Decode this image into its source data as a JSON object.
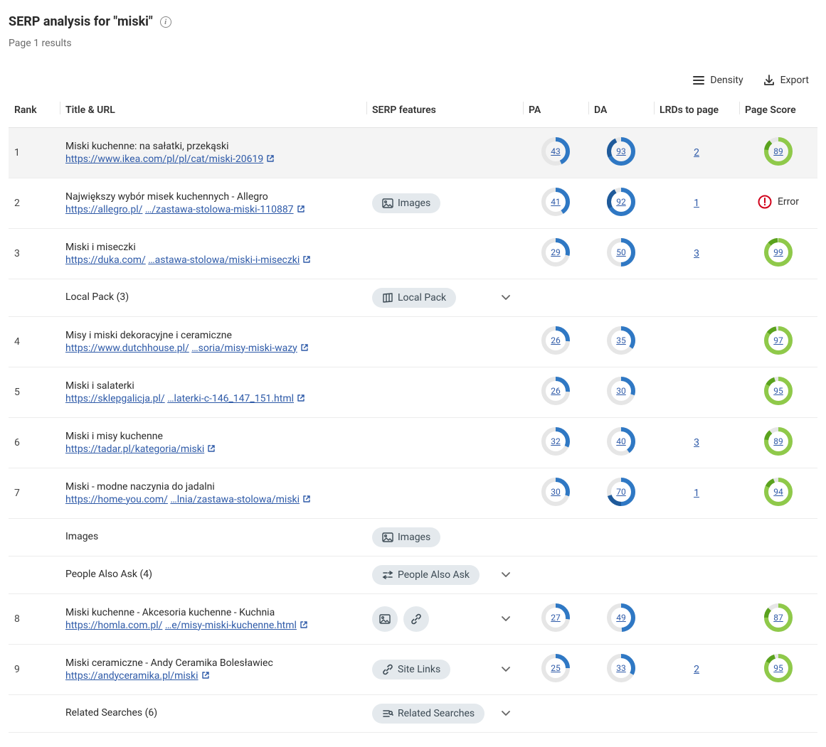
{
  "header": {
    "title_prefix": "SERP analysis for ",
    "title_quoted": "\"miski\"",
    "subtitle": "Page 1 results"
  },
  "toolbar": {
    "density": "Density",
    "export": "Export"
  },
  "columns": {
    "rank": "Rank",
    "title": "Title & URL",
    "features": "SERP features",
    "pa": "PA",
    "da": "DA",
    "lrds": "LRDs to page",
    "score": "Page Score"
  },
  "colors": {
    "donut_track": "#e6e6e6",
    "donut_blue": "#2f78c4",
    "donut_blue_dark": "#1f5a9a",
    "donut_green": "#8fc94a",
    "donut_green_dark": "#5aa21e",
    "pill_bg": "#e4e9ed",
    "link": "#2e5aa8",
    "error": "#d0021b"
  },
  "feature_labels": {
    "images": "Images",
    "local_pack": "Local Pack",
    "people_also_ask": "People Also Ask",
    "site_links": "Site Links",
    "related_searches": "Related Searches",
    "error": "Error"
  },
  "rows": [
    {
      "kind": "result",
      "highlight": true,
      "rank": "1",
      "title": "Miski kuchenne: na sałatki, przekąski",
      "url_display": "https://www.ikea.com/pl/pl/cat/miski-20619",
      "features": [],
      "expandable": false,
      "pa": 43,
      "da": 93,
      "lrds": "2",
      "score": 89
    },
    {
      "kind": "result",
      "rank": "2",
      "title": "Największy wybór misek kuchennych - Allegro",
      "url_prefix": "https://allegro.pl/",
      "url_suffix": "…/zastawa-stolowa-miski-110887",
      "features": [
        "images"
      ],
      "expandable": false,
      "pa": 41,
      "da": 92,
      "lrds": "1",
      "score_error": true
    },
    {
      "kind": "result",
      "rank": "3",
      "title": "Miski i miseczki",
      "url_prefix": "https://duka.com/",
      "url_suffix": "…astawa-stolowa/miski-i-miseczki",
      "features": [],
      "expandable": false,
      "pa": 29,
      "da": 50,
      "lrds": "3",
      "score": 99
    },
    {
      "kind": "feature_row",
      "label": "Local Pack (3)",
      "features": [
        "local_pack"
      ],
      "expandable": true
    },
    {
      "kind": "result",
      "rank": "4",
      "title": "Misy i miski dekoracyjne i ceramiczne",
      "url_prefix": "https://www.dutchhouse.pl/",
      "url_suffix": "…soria/misy-miski-wazy",
      "features": [],
      "expandable": false,
      "pa": 26,
      "da": 35,
      "lrds": "",
      "score": 97
    },
    {
      "kind": "result",
      "rank": "5",
      "title": "Miski i salaterki",
      "url_prefix": "https://sklepgalicja.pl/",
      "url_suffix": "…laterki-c-146_147_151.html",
      "features": [],
      "expandable": false,
      "pa": 26,
      "da": 30,
      "lrds": "",
      "score": 95
    },
    {
      "kind": "result",
      "rank": "6",
      "title": "Miski i misy kuchenne",
      "url_display": "https://tadar.pl/kategoria/miski",
      "features": [],
      "expandable": false,
      "pa": 32,
      "da": 40,
      "lrds": "3",
      "score": 89
    },
    {
      "kind": "result",
      "rank": "7",
      "title": "Miski - modne naczynia do jadalni",
      "url_prefix": "https://home-you.com/",
      "url_suffix": "…lnia/zastawa-stolowa/miski",
      "features": [],
      "expandable": false,
      "pa": 30,
      "da": 70,
      "lrds": "1",
      "score": 94
    },
    {
      "kind": "feature_row",
      "label": "Images",
      "features": [
        "images"
      ],
      "expandable": false
    },
    {
      "kind": "feature_row",
      "label": "People Also Ask (4)",
      "features": [
        "people_also_ask"
      ],
      "expandable": true
    },
    {
      "kind": "result",
      "rank": "8",
      "title": "Miski kuchenne - Akcesoria kuchenne - Kuchnia",
      "url_prefix": "https://homla.com.pl/",
      "url_suffix": "…e/misy-miski-kuchenne.html",
      "features": [
        "images_icon",
        "link_icon"
      ],
      "expandable": true,
      "pa": 27,
      "da": 49,
      "lrds": "",
      "score": 87
    },
    {
      "kind": "result",
      "rank": "9",
      "title": "Miski ceramiczne - Andy Ceramika Bolesławiec",
      "url_display": "https://andyceramika.pl/miski",
      "features": [
        "site_links"
      ],
      "expandable": true,
      "pa": 25,
      "da": 33,
      "lrds": "2",
      "score": 95
    },
    {
      "kind": "feature_row",
      "label": "Related Searches (6)",
      "features": [
        "related_searches"
      ],
      "expandable": true
    }
  ]
}
